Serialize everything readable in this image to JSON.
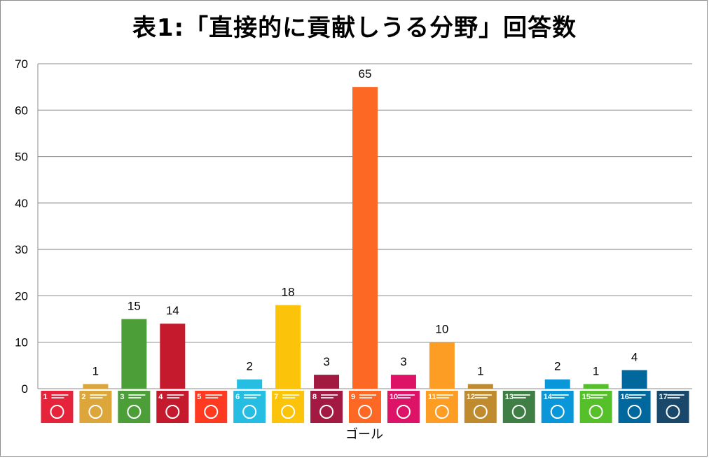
{
  "chart_data": {
    "type": "bar",
    "title": "表1:「直接的に貢献しうる分野」回答数",
    "xlabel": "ゴール",
    "ylabel": "",
    "ylim": [
      0,
      70
    ],
    "yticks": [
      0,
      10,
      20,
      30,
      40,
      50,
      60,
      70
    ],
    "grid": true,
    "categories": [
      "1",
      "2",
      "3",
      "4",
      "5",
      "6",
      "7",
      "8",
      "9",
      "10",
      "11",
      "12",
      "13",
      "14",
      "15",
      "16",
      "17"
    ],
    "values": [
      0,
      1,
      15,
      14,
      0,
      2,
      18,
      3,
      65,
      3,
      10,
      1,
      0,
      2,
      1,
      4,
      0
    ],
    "data_labels": [
      "",
      "1",
      "15",
      "14",
      "",
      "2",
      "18",
      "3",
      "65",
      "3",
      "10",
      "1",
      "",
      "2",
      "1",
      "4",
      ""
    ],
    "bar_colors": [
      "#e5243b",
      "#dda63a",
      "#4c9f38",
      "#c5192d",
      "#ff3a21",
      "#26bde2",
      "#fcc30b",
      "#a21942",
      "#fd6925",
      "#dd1367",
      "#fd9d24",
      "#bf8b2e",
      "#3f7e44",
      "#0a97d9",
      "#56c02b",
      "#00689d",
      "#19486a"
    ],
    "icon_names": [
      "poverty-icon",
      "hunger-icon",
      "health-icon",
      "education-icon",
      "gender-icon",
      "water-icon",
      "energy-icon",
      "growth-icon",
      "industry-icon",
      "inequality-icon",
      "cities-icon",
      "consumption-icon",
      "climate-icon",
      "ocean-icon",
      "land-icon",
      "peace-icon",
      "partnership-icon"
    ]
  }
}
